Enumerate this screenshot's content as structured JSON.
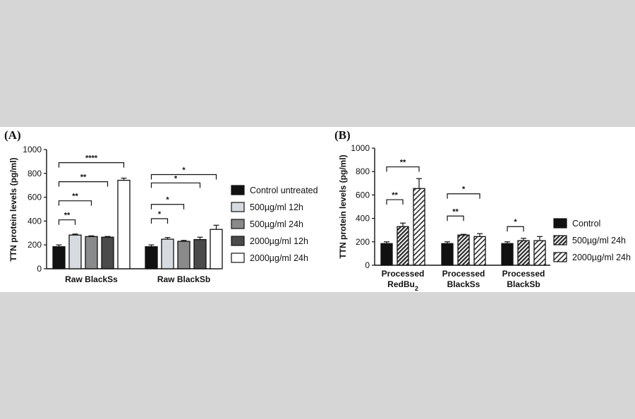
{
  "chart_data": [
    {
      "panel": "(A)",
      "type": "bar",
      "ylabel": "TTN protein levels (pg/ml)",
      "ylim": [
        0,
        1000
      ],
      "yticks": [
        0,
        200,
        400,
        600,
        800,
        1000
      ],
      "categories": [
        "Raw BlackSs",
        "Raw BlackSb"
      ],
      "series": [
        {
          "name": "Control untreated",
          "values": [
            185,
            185
          ],
          "errors": [
            15,
            15
          ],
          "fill": "black"
        },
        {
          "name": "500µg/ml 12h",
          "values": [
            283,
            248
          ],
          "errors": [
            8,
            14
          ],
          "fill": "lightgray"
        },
        {
          "name": "500µg/ml 24h",
          "values": [
            270,
            230
          ],
          "errors": [
            6,
            8
          ],
          "fill": "gray"
        },
        {
          "name": "2000µg/ml 12h",
          "values": [
            265,
            245
          ],
          "errors": [
            6,
            20
          ],
          "fill": "darkgray"
        },
        {
          "name": "2000µg/ml 24h",
          "values": [
            742,
            330
          ],
          "errors": [
            18,
            35
          ],
          "fill": "white"
        }
      ],
      "annotations": [
        {
          "group": 0,
          "from": 0,
          "to": 1,
          "label": "**",
          "level": 410
        },
        {
          "group": 0,
          "from": 0,
          "to": 2,
          "label": "**",
          "level": 570
        },
        {
          "group": 0,
          "from": 0,
          "to": 3,
          "label": "**",
          "level": 730
        },
        {
          "group": 0,
          "from": 0,
          "to": 4,
          "label": "****",
          "level": 890
        },
        {
          "group": 1,
          "from": 0,
          "to": 1,
          "label": "*",
          "level": 420
        },
        {
          "group": 1,
          "from": 0,
          "to": 2,
          "label": "*",
          "level": 540
        },
        {
          "group": 1,
          "from": 0,
          "to": 3,
          "label": "*",
          "level": 720
        },
        {
          "group": 1,
          "from": 0,
          "to": 4,
          "label": "*",
          "level": 790
        }
      ],
      "legend_position": "right"
    },
    {
      "panel": "(B)",
      "type": "bar",
      "ylabel": "TTN protein levels (pg/ml)",
      "ylim": [
        0,
        1000
      ],
      "yticks": [
        0,
        200,
        400,
        600,
        800,
        1000
      ],
      "categories": [
        "Processed RedBu2",
        "Processed BlackSs",
        "Processed BlackSb"
      ],
      "category_lines": [
        [
          "Processed",
          "RedBu",
          "2"
        ],
        [
          "Processed",
          "BlackSs",
          ""
        ],
        [
          "Processed",
          "BlackSb",
          ""
        ]
      ],
      "series": [
        {
          "name": "Control",
          "values": [
            185,
            185,
            185
          ],
          "errors": [
            15,
            15,
            15
          ],
          "fill": "black"
        },
        {
          "name": "500µg/ml 24h",
          "values": [
            330,
            258,
            210
          ],
          "errors": [
            30,
            6,
            20
          ],
          "fill": "hatch-dark"
        },
        {
          "name": "2000µg/ml 24h",
          "values": [
            655,
            245,
            210
          ],
          "errors": [
            85,
            25,
            35
          ],
          "fill": "hatch-light"
        }
      ],
      "annotations": [
        {
          "group": 0,
          "from": 0,
          "to": 1,
          "label": "**",
          "level": 560
        },
        {
          "group": 0,
          "from": 0,
          "to": 2,
          "label": "**",
          "level": 840
        },
        {
          "group": 1,
          "from": 0,
          "to": 1,
          "label": "**",
          "level": 420
        },
        {
          "group": 1,
          "from": 0,
          "to": 2,
          "label": "*",
          "level": 610
        },
        {
          "group": 2,
          "from": 0,
          "to": 1,
          "label": "*",
          "level": 330
        }
      ],
      "legend_position": "right"
    }
  ]
}
